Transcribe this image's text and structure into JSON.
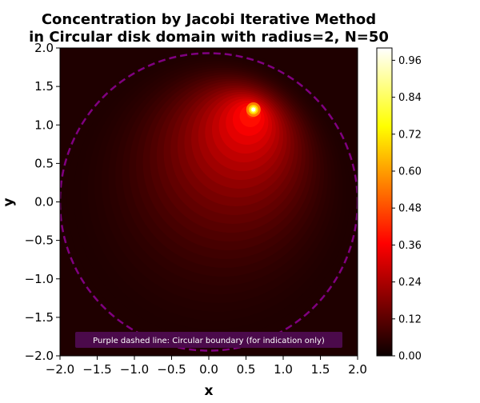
{
  "chart_data": {
    "type": "heatmap",
    "title_lines": [
      "Concentration by Jacobi Iterative Method",
      "in Circular disk domain with radius=2, N=50"
    ],
    "xlabel": "x",
    "ylabel": "y",
    "xlim": [
      -2.0,
      2.0
    ],
    "ylim": [
      -2.0,
      2.0
    ],
    "xticks": [
      -2.0,
      -1.5,
      -1.0,
      -0.5,
      0.0,
      0.5,
      1.0,
      1.5,
      2.0
    ],
    "yticks": [
      -2.0,
      -1.5,
      -1.0,
      -0.5,
      0.0,
      0.5,
      1.0,
      1.5,
      2.0
    ],
    "xtick_labels": [
      "−2.0",
      "−1.5",
      "−1.0",
      "−0.5",
      "0.0",
      "0.5",
      "1.0",
      "1.5",
      "2.0"
    ],
    "ytick_labels": [
      "−2.0",
      "−1.5",
      "−1.0",
      "−0.5",
      "0.0",
      "0.5",
      "1.0",
      "1.5",
      "2.0"
    ],
    "colormap": "hot",
    "color_range": [
      0.0,
      1.0
    ],
    "colorbar_ticks": [
      0.0,
      0.12,
      0.24,
      0.36,
      0.48,
      0.6,
      0.72,
      0.84,
      0.96
    ],
    "colorbar_tick_labels": [
      "0.00",
      "0.12",
      "0.24",
      "0.36",
      "0.48",
      "0.60",
      "0.72",
      "0.84",
      "0.96"
    ],
    "domain": {
      "shape": "circle",
      "center": [
        0.0,
        0.0
      ],
      "radius": 2.0
    },
    "peak": {
      "x": 0.6,
      "y": 1.2,
      "value": 1.0
    },
    "boundary_color": "#800080",
    "annotation": "Purple dashed line: Circular boundary (for indication only)",
    "annotation_bg": "#4b0a4b"
  }
}
